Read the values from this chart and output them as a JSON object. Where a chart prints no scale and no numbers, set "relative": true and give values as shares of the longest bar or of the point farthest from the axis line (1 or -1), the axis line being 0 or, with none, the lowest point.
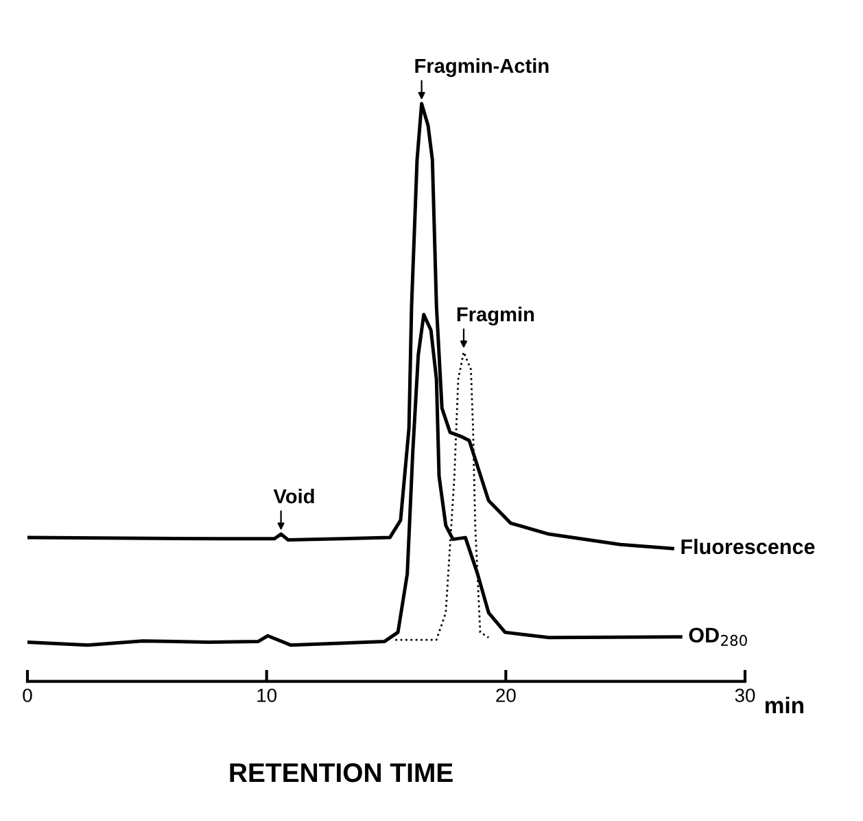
{
  "chart_data": {
    "type": "line",
    "relative": true,
    "xlabel": "RETENTION TIME",
    "xlim": [
      0,
      30
    ],
    "xticks": [
      0,
      10,
      20,
      30
    ],
    "line_style": "solid",
    "marker": "none",
    "grid": false,
    "tick_labels": "x",
    "series": [
      {
        "name": "Fluorescence",
        "color": "#000000",
        "x": [
          0,
          8.03,
          10.33,
          10.6,
          10.9,
          15.15,
          15.6,
          15.95,
          16.06,
          16.29,
          16.48,
          16.75,
          16.93,
          17.1,
          17.33,
          17.67,
          18.13,
          18.47,
          18.82,
          19.28,
          20.2,
          21.8,
          24.79,
          26.97
        ],
        "values": [
          0.249,
          0.247,
          0.247,
          0.255,
          0.245,
          0.249,
          0.279,
          0.438,
          0.65,
          0.903,
          1.0,
          0.962,
          0.903,
          0.65,
          0.473,
          0.431,
          0.424,
          0.417,
          0.372,
          0.313,
          0.274,
          0.255,
          0.237,
          0.23
        ]
      },
      {
        "name": "OD$_{280}$",
        "color": "#000000",
        "x": [
          0,
          2.52,
          4.82,
          7.57,
          9.64,
          10.05,
          11.0,
          14.92,
          15.49,
          15.88,
          16.11,
          16.34,
          16.57,
          16.87,
          17.1,
          17.21,
          17.49,
          17.79,
          18.31,
          18.82,
          19.28,
          19.97,
          21.8,
          27.31
        ],
        "values": [
          0.068,
          0.063,
          0.07,
          0.068,
          0.069,
          0.079,
          0.063,
          0.069,
          0.085,
          0.186,
          0.397,
          0.565,
          0.635,
          0.608,
          0.523,
          0.355,
          0.27,
          0.246,
          0.249,
          0.186,
          0.119,
          0.085,
          0.076,
          0.077
        ]
      },
      {
        "color": "#000000",
        "line_style": "dotted",
        "x": [
          15.38,
          17.1,
          17.49,
          17.85,
          18.01,
          18.24,
          18.54,
          18.63,
          18.72,
          18.93,
          19.28
        ],
        "values": [
          0.072,
          0.072,
          0.119,
          0.355,
          0.523,
          0.57,
          0.54,
          0.438,
          0.27,
          0.085,
          0.076
        ]
      }
    ],
    "annotations": [
      {
        "text": "Void",
        "x": 10.6,
        "y": 0.255
      },
      {
        "text": "Fragmin-Actin",
        "x": 16.48,
        "y": 1.0
      },
      {
        "text": "Fragmin",
        "x": 18.24,
        "y": 0.57
      },
      "min"
    ]
  }
}
